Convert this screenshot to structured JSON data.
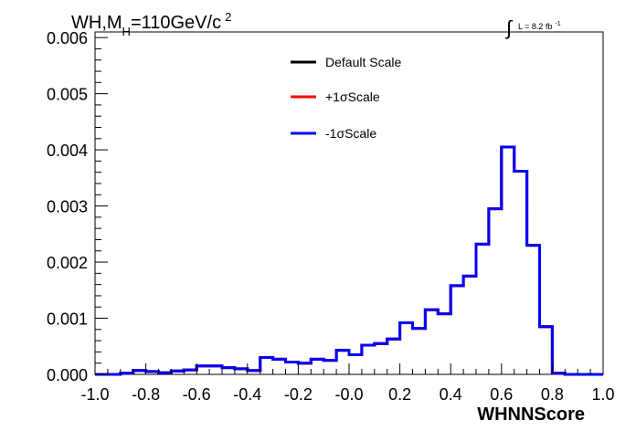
{
  "chart_data": {
    "type": "line",
    "title": {
      "main": "WH,M",
      "sub": "H",
      "rest": "=110GeV/c",
      "sup": "2"
    },
    "lumi": {
      "integral": "∫",
      "text": "L = 8.2 fb",
      "sup": "-1"
    },
    "xlabel": "WHNNScore",
    "ylabel": "",
    "xlim": [
      -1.0,
      1.0
    ],
    "ylim": [
      0,
      0.0061
    ],
    "xticks": [
      "-1.0",
      "-0.8",
      "-0.6",
      "-0.4",
      "-0.2",
      "-0.0",
      "0.2",
      "0.4",
      "0.6",
      "0.8",
      "1.0"
    ],
    "yticks": [
      "0.000",
      "0.001",
      "0.002",
      "0.003",
      "0.004",
      "0.005",
      "0.006"
    ],
    "bin_edges": [
      -1.0,
      -0.95,
      -0.9,
      -0.85,
      -0.8,
      -0.75,
      -0.7,
      -0.65,
      -0.6,
      -0.55,
      -0.5,
      -0.45,
      -0.4,
      -0.35,
      -0.3,
      -0.25,
      -0.2,
      -0.15,
      -0.1,
      -0.05,
      0.0,
      0.05,
      0.1,
      0.15,
      0.2,
      0.25,
      0.3,
      0.35,
      0.4,
      0.45,
      0.5,
      0.55,
      0.6,
      0.65,
      0.7,
      0.75,
      0.8,
      0.85,
      0.9,
      0.95,
      1.0
    ],
    "series": [
      {
        "name": "Default Scale",
        "color": "#000000",
        "values": [
          0.0,
          0.0,
          2e-05,
          7e-05,
          5e-05,
          3e-05,
          6e-05,
          8e-05,
          0.00015,
          0.00015,
          0.00012,
          0.0001,
          7e-05,
          0.0003,
          0.00027,
          0.00022,
          0.0002,
          0.00027,
          0.00025,
          0.00043,
          0.00035,
          0.00052,
          0.00055,
          0.00063,
          0.00092,
          0.00082,
          0.00115,
          0.00108,
          0.00158,
          0.00175,
          0.00232,
          0.00295,
          0.00405,
          0.00362,
          0.0023,
          0.00085,
          2e-05,
          0.0,
          0.0,
          0.0
        ]
      },
      {
        "name": "+1σScale",
        "color": "#ff0000",
        "values": [
          0.0,
          0.0,
          2e-05,
          7e-05,
          5e-05,
          3e-05,
          6e-05,
          8e-05,
          0.00015,
          0.00015,
          0.00012,
          0.0001,
          7e-05,
          0.0003,
          0.00027,
          0.00022,
          0.0002,
          0.00027,
          0.00025,
          0.00043,
          0.00035,
          0.00052,
          0.00055,
          0.00063,
          0.00092,
          0.00082,
          0.00115,
          0.00108,
          0.00158,
          0.00175,
          0.00232,
          0.00295,
          0.00405,
          0.00362,
          0.0023,
          0.00085,
          2e-05,
          0.0,
          0.0,
          0.0
        ]
      },
      {
        "name": "-1σScale",
        "color": "#0000ff",
        "values": [
          0.0,
          0.0,
          2e-05,
          7e-05,
          5e-05,
          3e-05,
          6e-05,
          8e-05,
          0.00015,
          0.00015,
          0.00012,
          0.0001,
          7e-05,
          0.0003,
          0.00027,
          0.00022,
          0.0002,
          0.00027,
          0.00025,
          0.00043,
          0.00035,
          0.00052,
          0.00055,
          0.00063,
          0.00092,
          0.00082,
          0.00115,
          0.00108,
          0.00158,
          0.00175,
          0.00232,
          0.00295,
          0.00405,
          0.00362,
          0.0023,
          0.00085,
          2e-05,
          0.0,
          0.0,
          0.0
        ]
      }
    ],
    "legend_position": "top-center"
  }
}
